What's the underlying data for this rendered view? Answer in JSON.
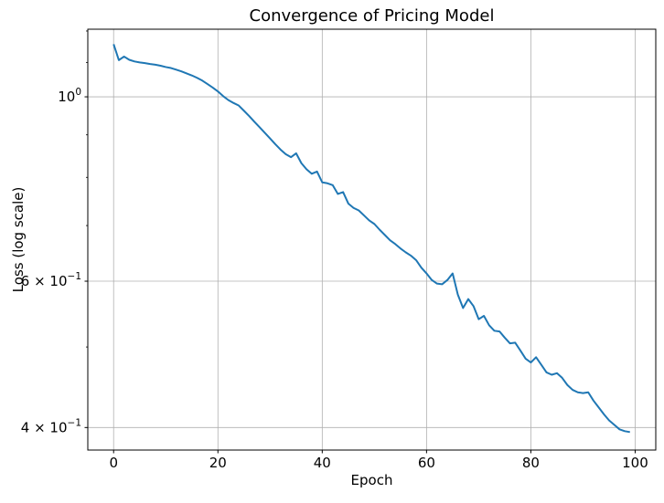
{
  "figure": {
    "background": "#ffffff",
    "text_color": "#000000",
    "spine_color": "#000000"
  },
  "chart_data": {
    "type": "line",
    "title": "Convergence of Pricing Model",
    "xlabel": "Epoch",
    "ylabel": "Loss (log scale)",
    "yscale": "log",
    "grid": "major ticks only, color #b0b0b0",
    "legend": "none",
    "line_color": "#1f77b4",
    "grid_color": "#b0b0b0",
    "xlim": [
      -4.95,
      103.95
    ],
    "ylim": [
      0.3758,
      1.206
    ],
    "xticks": [
      0,
      20,
      40,
      60,
      80,
      100
    ],
    "yticks": [
      {
        "value": 1.0,
        "mantissa": "10",
        "exponent": "0"
      },
      {
        "value": 0.6,
        "mantissa": "6 × 10",
        "exponent": "−1"
      },
      {
        "value": 0.4,
        "mantissa": "4 × 10",
        "exponent": "−1"
      }
    ],
    "yticks_minor": [
      1.2,
      1.1,
      0.9,
      0.8,
      0.7,
      0.5
    ],
    "series": [
      {
        "name": "loss",
        "x_note": "epoch = array index, 0 to 99",
        "values": [
          1.157,
          1.107,
          1.118,
          1.108,
          1.103,
          1.1,
          1.098,
          1.095,
          1.093,
          1.09,
          1.086,
          1.083,
          1.078,
          1.073,
          1.067,
          1.061,
          1.054,
          1.046,
          1.036,
          1.026,
          1.015,
          1.002,
          0.991,
          0.983,
          0.976,
          0.962,
          0.948,
          0.933,
          0.919,
          0.905,
          0.891,
          0.877,
          0.864,
          0.853,
          0.846,
          0.855,
          0.832,
          0.818,
          0.808,
          0.813,
          0.789,
          0.787,
          0.783,
          0.764,
          0.768,
          0.744,
          0.735,
          0.73,
          0.72,
          0.71,
          0.703,
          0.692,
          0.682,
          0.672,
          0.665,
          0.657,
          0.65,
          0.644,
          0.636,
          0.623,
          0.613,
          0.602,
          0.596,
          0.595,
          0.602,
          0.613,
          0.578,
          0.557,
          0.571,
          0.56,
          0.54,
          0.545,
          0.531,
          0.523,
          0.522,
          0.513,
          0.505,
          0.506,
          0.495,
          0.484,
          0.479,
          0.486,
          0.476,
          0.466,
          0.463,
          0.465,
          0.459,
          0.45,
          0.444,
          0.441,
          0.44,
          0.441,
          0.431,
          0.423,
          0.415,
          0.408,
          0.403,
          0.398,
          0.396,
          0.395
        ]
      }
    ]
  }
}
